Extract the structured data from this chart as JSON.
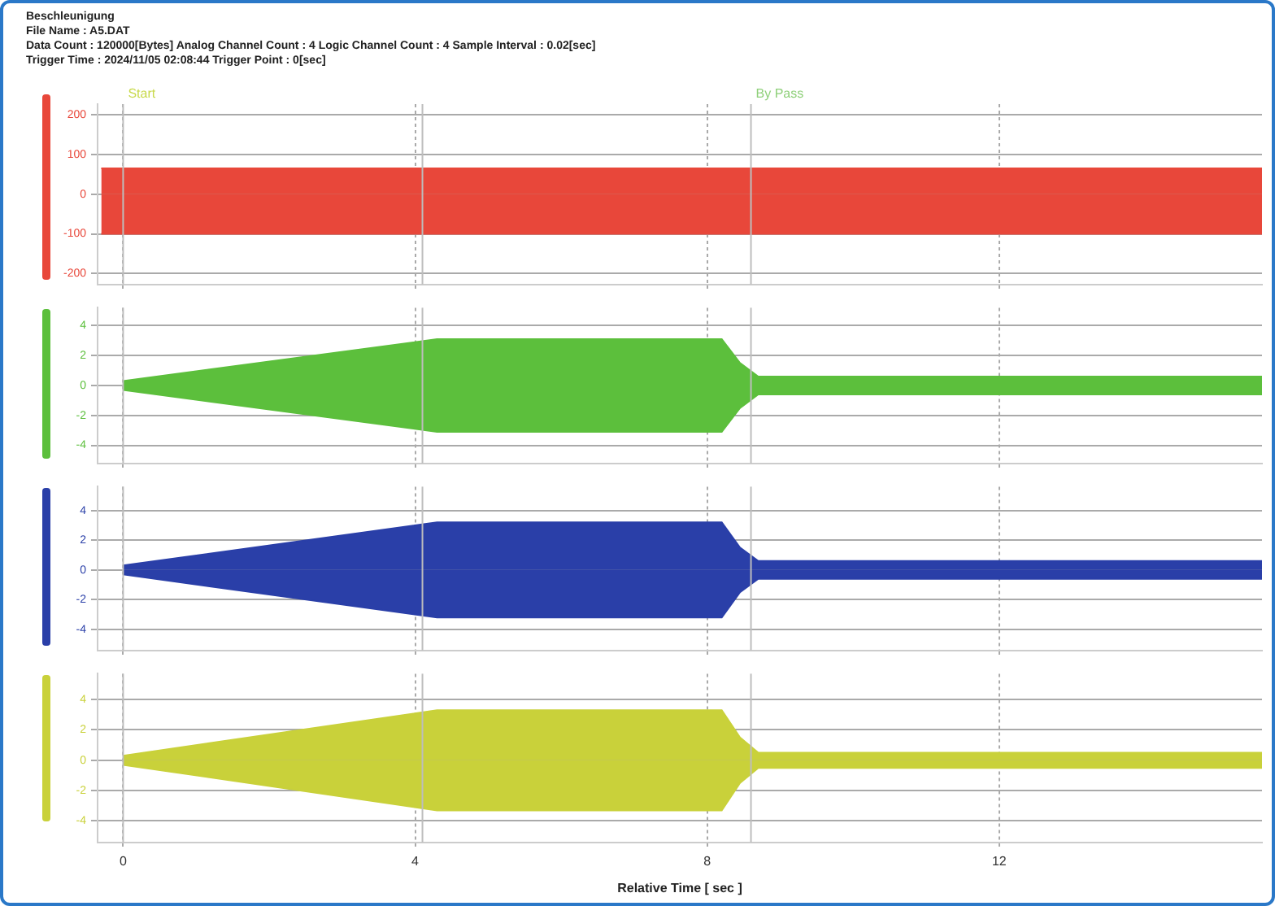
{
  "chart_data": [
    {
      "type": "area",
      "annotations": [
        "Beschleunigung",
        "File Name : A5.DAT",
        "Data Count : 120000[Bytes]  Analog Channel Count : 4  Logic Channel Count : 4  Sample Interval : 0.02[sec]",
        "Trigger Time : 2024/11/05 02:08:44  Trigger Point : 0[sec]"
      ],
      "x": [
        -0.3,
        15.6
      ],
      "series": [
        {
          "color": "#e8473a",
          "values": [
            65,
            65
          ]
        },
        {
          "color": "#e8473a",
          "values": [
            -100,
            -100
          ]
        }
      ],
      "xlim": [
        -0.35,
        15.6
      ],
      "ylim": [
        -227,
        227
      ],
      "yticks": [
        200,
        100,
        0,
        -100,
        -200
      ],
      "xticks": [
        0,
        4,
        8,
        12
      ],
      "tick_labels": "y",
      "grid": true,
      "ref_lines": [
        {
          "axis": "x",
          "value": 0,
          "label": "Start"
        },
        {
          "axis": "x",
          "value": 4.1,
          "label": null
        },
        {
          "axis": "x",
          "value": 8.6,
          "label": "By Pass"
        }
      ]
    },
    {
      "type": "area",
      "x": [
        0,
        4.3,
        8.2,
        8.45,
        8.7,
        15.6
      ],
      "series": [
        {
          "color": "#5cbf3c",
          "values": [
            0.3,
            3.1,
            3.1,
            1.5,
            0.6,
            0.6
          ]
        },
        {
          "color": "#5cbf3c",
          "values": [
            -0.3,
            -3.1,
            -3.1,
            -1.5,
            -0.6,
            -0.6
          ]
        }
      ],
      "xlim": [
        -0.35,
        15.6
      ],
      "ylim": [
        -5.2,
        5.2
      ],
      "yticks": [
        4,
        2,
        0,
        -2,
        -4
      ],
      "xticks": [
        0,
        4,
        8,
        12
      ],
      "tick_labels": "y",
      "grid": true,
      "ref_lines": [
        {
          "axis": "x",
          "value": 0,
          "label": null
        },
        {
          "axis": "x",
          "value": 4.1,
          "label": null
        },
        {
          "axis": "x",
          "value": 8.6,
          "label": null
        }
      ]
    },
    {
      "type": "area",
      "x": [
        0,
        4.3,
        8.2,
        8.45,
        8.7,
        15.6
      ],
      "series": [
        {
          "color": "#2a3fa8",
          "values": [
            0.3,
            3.2,
            3.2,
            1.5,
            0.6,
            0.6
          ]
        },
        {
          "color": "#2a3fa8",
          "values": [
            -0.3,
            -3.2,
            -3.2,
            -1.5,
            -0.6,
            -0.6
          ]
        }
      ],
      "xlim": [
        -0.35,
        15.6
      ],
      "ylim": [
        -5.4,
        5.6
      ],
      "yticks": [
        4,
        2,
        0,
        -2,
        -4
      ],
      "xticks": [
        0,
        4,
        8,
        12
      ],
      "tick_labels": "y",
      "grid": true,
      "ref_lines": [
        {
          "axis": "x",
          "value": 0,
          "label": null
        },
        {
          "axis": "x",
          "value": 4.1,
          "label": null
        },
        {
          "axis": "x",
          "value": 8.6,
          "label": null
        }
      ]
    },
    {
      "type": "area",
      "x": [
        0,
        4.3,
        8.2,
        8.45,
        8.7,
        15.6
      ],
      "series": [
        {
          "color": "#c9d13a",
          "values": [
            0.3,
            3.3,
            3.3,
            1.5,
            0.5,
            0.5
          ]
        },
        {
          "color": "#c9d13a",
          "values": [
            -0.3,
            -3.3,
            -3.3,
            -1.5,
            -0.5,
            -0.5
          ]
        }
      ],
      "xlim": [
        -0.35,
        15.6
      ],
      "ylim": [
        -5.4,
        5.7
      ],
      "yticks": [
        4,
        2,
        0,
        -2,
        -4
      ],
      "xticks": [
        0,
        4,
        8,
        12
      ],
      "xlabel": "Relative Time [ sec ]",
      "grid": true,
      "ref_lines": [
        {
          "axis": "x",
          "value": 0,
          "label": null
        },
        {
          "axis": "x",
          "value": 4.1,
          "label": null
        },
        {
          "axis": "x",
          "value": 8.6,
          "label": null
        }
      ]
    }
  ]
}
